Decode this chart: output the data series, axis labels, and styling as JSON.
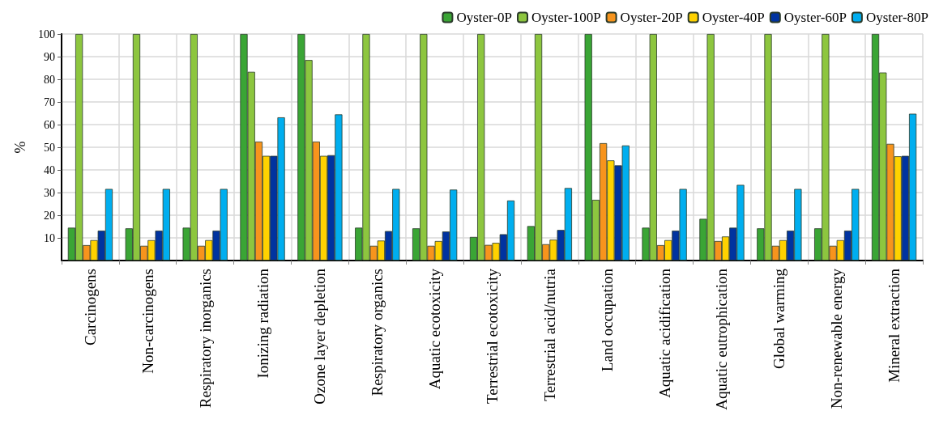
{
  "chart_data": {
    "type": "bar",
    "ylabel": "%",
    "categories": [
      "Carcinogens",
      "Non-carcinogens",
      "Respiratory inorganics",
      "Ionizing radiation",
      "Ozone layer depletion",
      "Respiratory organics",
      "Aquatic ecotoxicity",
      "Terrestrial ecotoxicity",
      "Terrestrial acid/nutria",
      "Land occupation",
      "Aquatic acidification",
      "Aquatic eutrophication",
      "Global warming",
      "Non-renewable energy",
      "Mineral extraction"
    ],
    "series": [
      {
        "name": "Oyster-0P",
        "color": "#3aa535",
        "values": [
          14.5,
          14.2,
          14.5,
          100,
          100,
          14.5,
          14.2,
          10.4,
          15.2,
          100,
          14.5,
          18.4,
          14.2,
          14.2,
          100
        ]
      },
      {
        "name": "Oyster-100P",
        "color": "#8dc63f",
        "values": [
          100,
          100,
          100,
          83.3,
          88.5,
          100,
          100,
          100,
          100,
          26.8,
          100,
          100,
          100,
          100,
          83
        ]
      },
      {
        "name": "Oyster-20P",
        "color": "#f7941d",
        "values": [
          6.8,
          6.5,
          6.5,
          52.5,
          52.5,
          6.5,
          6.5,
          6.9,
          7.2,
          51.8,
          6.8,
          8.6,
          6.5,
          6.5,
          51.5
        ]
      },
      {
        "name": "Oyster-40P",
        "color": "#ffd200",
        "values": [
          9,
          9,
          9,
          46.2,
          46.2,
          8.8,
          8.6,
          7.8,
          9.2,
          44.2,
          9,
          10.6,
          9,
          9,
          46
        ]
      },
      {
        "name": "Oyster-60P",
        "color": "#0033a0",
        "values": [
          13.2,
          13.2,
          13.2,
          46.2,
          46.5,
          13,
          12.8,
          11.6,
          13.5,
          42,
          13.2,
          14.5,
          13.2,
          13.2,
          46.2
        ]
      },
      {
        "name": "Oyster-80P",
        "color": "#00aeef",
        "values": [
          31.6,
          31.6,
          31.6,
          63.2,
          64.5,
          31.6,
          31.3,
          26.5,
          32,
          50.8,
          31.6,
          33.4,
          31.6,
          31.6,
          64.8
        ]
      }
    ],
    "ylim": [
      0,
      100
    ],
    "yticks": [
      10,
      20,
      30,
      40,
      50,
      60,
      70,
      80,
      90,
      100
    ],
    "grid": true,
    "legend": "top right"
  }
}
